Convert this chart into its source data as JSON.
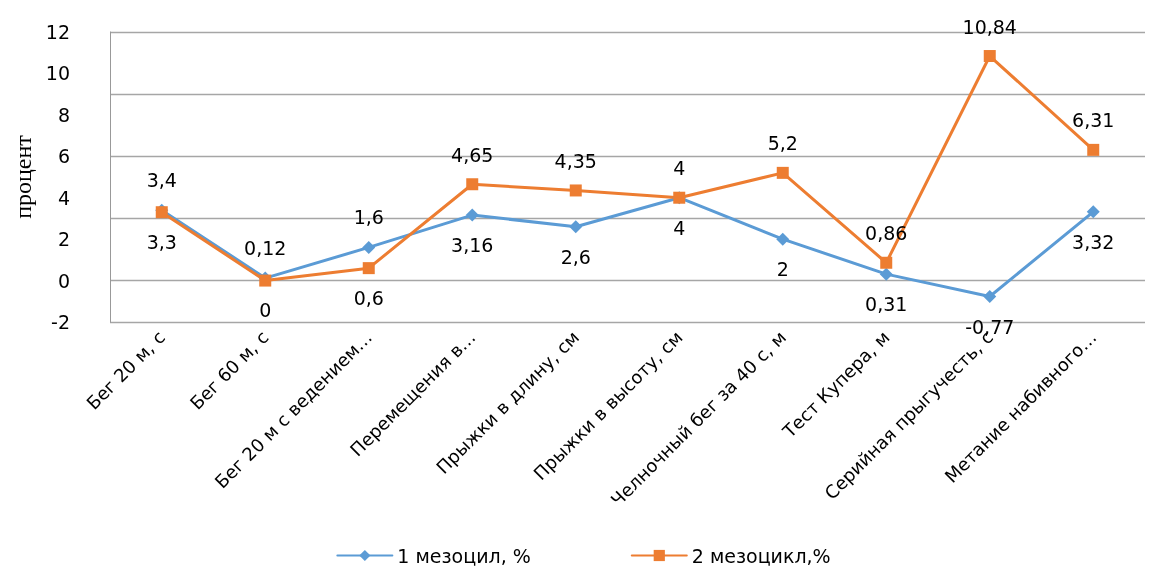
{
  "chart_data": {
    "type": "line",
    "ylabel": "процент",
    "categories": [
      "Бег 20 м, с",
      "Бег 60 м, с",
      "Бег 20 м с ведением…",
      "Перемещения в…",
      "Прыжки в длину, см",
      "Прыжки в высоту, см",
      "Челночный бег за 40 с, м",
      "Тест Купера, м",
      "Серийная прыгучесть, с",
      "Метание набивного…"
    ],
    "series": [
      {
        "name": "1 мезоцил, %",
        "color": "#5b9bd5",
        "marker": "diamond",
        "values": [
          3.4,
          0.12,
          1.6,
          3.16,
          2.6,
          4,
          2,
          0.31,
          -0.77,
          3.32
        ],
        "value_labels": [
          "3,4",
          "0,12",
          "1,6",
          "3,16",
          "2,6",
          "4",
          "2",
          "0,31",
          "-0,77",
          "3,32"
        ]
      },
      {
        "name": "2 мезоцикл,%",
        "color": "#ed7d31",
        "marker": "square",
        "values": [
          3.3,
          0,
          0.6,
          4.65,
          4.35,
          4,
          5.2,
          0.86,
          10.84,
          6.31
        ],
        "value_labels": [
          "3,3",
          "0",
          "0,6",
          "4,65",
          "4,35",
          "4",
          "5,2",
          "0,86",
          "10,84",
          "6,31"
        ]
      }
    ],
    "ylim": [
      -2,
      12
    ],
    "yticks": [
      -2,
      0,
      2,
      4,
      6,
      8,
      10,
      12
    ],
    "grid": "y",
    "legend": "bottom"
  }
}
